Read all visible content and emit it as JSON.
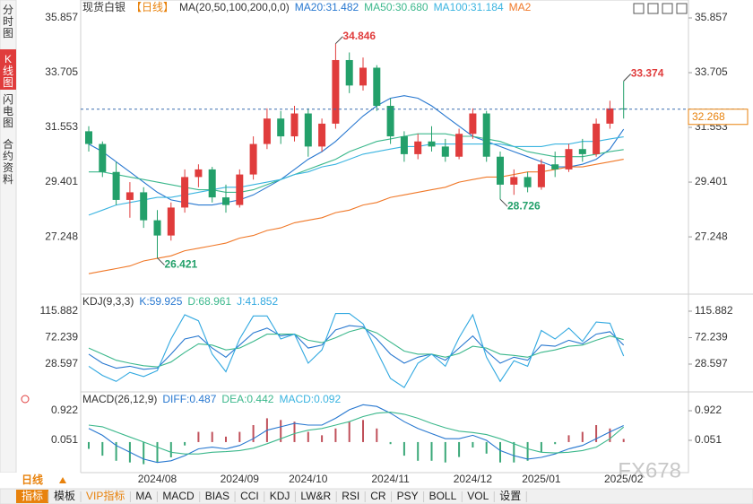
{
  "sidebar_tabs": [
    "分时图",
    "K线图",
    "闪电图",
    "合约资料"
  ],
  "period": "日线",
  "toolbar": [
    "指标",
    "模板",
    "VIP指标",
    "MA",
    "MACD",
    "BIAS",
    "CCI",
    "KDJ",
    "LW&R",
    "RSI",
    "CR",
    "PSY",
    "BOLL",
    "VOL",
    "设置"
  ],
  "watermark": "FX678",
  "chart_data": [
    {
      "type": "candlestick",
      "header": [
        {
          "text": "现货白银",
          "color": "#333333"
        },
        {
          "text": "【日线】",
          "color": "#e8820c"
        },
        {
          "text": "MA(20,50,100,200,0,0)",
          "color": "#333333"
        },
        {
          "text": "MA20:31.482",
          "color": "#2878d0"
        },
        {
          "text": "MA50:30.680",
          "color": "#3cb88c"
        },
        {
          "text": "MA100:31.184",
          "color": "#3ab4e0"
        },
        {
          "text": "MA2",
          "color": "#f07828"
        }
      ],
      "categories": [
        null,
        null,
        null,
        null,
        null,
        "2024/08",
        null,
        null,
        null,
        null,
        null,
        "2024/09",
        null,
        null,
        null,
        null,
        "2024/10",
        null,
        null,
        null,
        null,
        null,
        "2024/11",
        null,
        null,
        null,
        null,
        null,
        "2024/12",
        null,
        null,
        null,
        null,
        "2025/01",
        null,
        null,
        null,
        null,
        null,
        "2025/02"
      ],
      "open": [
        31.4,
        30.9,
        29.8,
        28.7,
        29.0,
        27.9,
        27.3,
        28.4,
        29.6,
        29.9,
        28.8,
        28.5,
        29.7,
        30.9,
        31.9,
        31.2,
        32.1,
        30.8,
        31.7,
        34.2,
        33.2,
        33.9,
        32.4,
        31.2,
        30.5,
        31.0,
        30.8,
        30.4,
        31.3,
        32.1,
        30.4,
        29.3,
        29.6,
        29.2,
        30.1,
        29.9,
        30.7,
        30.5,
        31.7,
        32.3
      ],
      "high": [
        31.6,
        31.0,
        30.2,
        29.4,
        29.2,
        28.3,
        28.6,
        29.9,
        30.1,
        30.0,
        29.3,
        29.9,
        31.2,
        32.3,
        32.2,
        32.4,
        32.3,
        31.9,
        34.846,
        34.5,
        34.3,
        34.0,
        32.7,
        31.4,
        31.3,
        31.6,
        31.1,
        31.5,
        32.3,
        32.2,
        30.6,
        29.9,
        29.8,
        30.3,
        30.6,
        30.9,
        31.1,
        31.9,
        32.6,
        33.374
      ],
      "low": [
        30.6,
        29.6,
        28.5,
        28.0,
        27.6,
        26.421,
        27.1,
        28.2,
        29.2,
        28.6,
        28.2,
        28.4,
        29.5,
        30.7,
        30.9,
        31.0,
        30.4,
        30.6,
        31.5,
        32.9,
        33.0,
        32.2,
        30.9,
        30.2,
        30.3,
        30.6,
        30.2,
        30.3,
        31.1,
        30.2,
        28.726,
        28.9,
        29.0,
        29.1,
        29.6,
        29.8,
        30.2,
        30.4,
        31.5,
        31.9
      ],
      "close": [
        30.9,
        29.8,
        28.7,
        29.0,
        27.9,
        27.3,
        28.4,
        29.6,
        29.9,
        28.8,
        28.5,
        29.7,
        30.9,
        31.9,
        31.2,
        32.1,
        30.8,
        31.7,
        34.2,
        33.2,
        33.9,
        32.4,
        31.2,
        30.5,
        31.0,
        30.8,
        30.4,
        31.3,
        32.1,
        30.4,
        29.3,
        29.6,
        29.2,
        30.1,
        29.9,
        30.7,
        30.5,
        31.7,
        32.3,
        32.268
      ],
      "up_color": "#e03c3c",
      "down_color": "#23a06a",
      "series": [
        {
          "color": "#2878d0",
          "values": [
            30.9,
            30.6,
            30.2,
            29.8,
            29.4,
            29.0,
            28.7,
            28.6,
            28.5,
            28.5,
            28.6,
            28.7,
            28.9,
            29.2,
            29.5,
            29.9,
            30.3,
            30.6,
            31.0,
            31.5,
            32.0,
            32.4,
            32.7,
            32.8,
            32.7,
            32.4,
            32.0,
            31.6,
            31.2,
            31.0,
            30.8,
            30.6,
            30.4,
            30.2,
            30.0,
            30.0,
            30.1,
            30.3,
            30.7,
            31.48
          ]
        },
        {
          "color": "#3cb88c",
          "values": [
            29.8,
            29.8,
            29.7,
            29.6,
            29.5,
            29.4,
            29.3,
            29.2,
            29.1,
            29.1,
            29.0,
            29.0,
            29.1,
            29.3,
            29.5,
            29.7,
            29.9,
            30.1,
            30.3,
            30.6,
            30.8,
            31.0,
            31.1,
            31.2,
            31.3,
            31.3,
            31.3,
            31.2,
            31.2,
            31.1,
            31.0,
            30.8,
            30.6,
            30.5,
            30.4,
            30.4,
            30.4,
            30.5,
            30.6,
            30.68
          ]
        },
        {
          "color": "#3ab4e0",
          "values": [
            28.1,
            28.3,
            28.5,
            28.6,
            28.7,
            28.8,
            28.8,
            28.9,
            29.0,
            29.1,
            29.2,
            29.2,
            29.3,
            29.4,
            29.5,
            29.7,
            29.8,
            30.0,
            30.1,
            30.3,
            30.5,
            30.6,
            30.7,
            30.8,
            30.8,
            30.9,
            30.9,
            30.9,
            30.9,
            30.9,
            30.9,
            30.8,
            30.8,
            30.8,
            30.9,
            30.9,
            31.0,
            31.0,
            31.1,
            31.18
          ]
        },
        {
          "color": "#f07828",
          "values": [
            25.8,
            25.9,
            26.0,
            26.1,
            26.3,
            26.4,
            26.5,
            26.7,
            26.8,
            26.9,
            27.0,
            27.2,
            27.3,
            27.5,
            27.6,
            27.8,
            27.9,
            28.0,
            28.2,
            28.3,
            28.5,
            28.6,
            28.8,
            28.9,
            29.0,
            29.1,
            29.2,
            29.4,
            29.5,
            29.6,
            29.6,
            29.7,
            29.8,
            29.8,
            29.9,
            30.0,
            30.0,
            30.1,
            30.2,
            30.3
          ]
        }
      ],
      "annotations": [
        {
          "value": 34.846,
          "color": "#e03c3c"
        },
        {
          "value": 33.374,
          "color": "#e03c3c"
        },
        {
          "value": 28.726,
          "color": "#23a06a"
        },
        {
          "value": 26.421,
          "color": "#23a06a"
        }
      ],
      "last_price": 32.268,
      "ylim": [
        25.1,
        36.21
      ],
      "yticks": [
        27.248,
        29.401,
        31.553,
        33.705,
        35.857
      ]
    },
    {
      "type": "line",
      "header": [
        {
          "text": "KDJ(9,3,3)",
          "color": "#333333"
        },
        {
          "text": "K:59.925",
          "color": "#2878d0"
        },
        {
          "text": "D:68.961",
          "color": "#3cb88c"
        },
        {
          "text": "J:41.852",
          "color": "#30a8e0"
        }
      ],
      "series": [
        {
          "color": "#2878d0",
          "values": [
            45,
            30,
            22,
            25,
            20,
            22,
            45,
            70,
            75,
            55,
            40,
            60,
            80,
            88,
            75,
            78,
            55,
            60,
            85,
            92,
            90,
            70,
            45,
            30,
            40,
            45,
            35,
            55,
            75,
            50,
            30,
            40,
            35,
            60,
            58,
            68,
            62,
            78,
            82,
            59.925
          ]
        },
        {
          "color": "#3cb88c",
          "values": [
            55,
            45,
            35,
            30,
            26,
            24,
            32,
            48,
            62,
            60,
            52,
            55,
            66,
            78,
            78,
            78,
            68,
            64,
            72,
            82,
            88,
            80,
            65,
            50,
            45,
            45,
            40,
            46,
            58,
            55,
            45,
            43,
            40,
            48,
            52,
            58,
            60,
            68,
            75,
            68.961
          ]
        },
        {
          "color": "#30a8e0",
          "values": [
            25,
            10,
            0,
            15,
            8,
            18,
            70,
            110,
            100,
            45,
            16,
            70,
            108,
            108,
            70,
            78,
            30,
            52,
            112,
            112,
            95,
            50,
            5,
            -10,
            30,
            45,
            25,
            72,
            110,
            40,
            0,
            34,
            25,
            84,
            70,
            88,
            66,
            98,
            96,
            41.852
          ]
        }
      ],
      "ylim": [
        -14.3,
        133.6
      ],
      "yticks": [
        28.597,
        72.239,
        115.882
      ]
    },
    {
      "type": "macd",
      "header": [
        {
          "text": "MACD(26,12,9)",
          "color": "#333333"
        },
        {
          "text": "DIFF:0.487",
          "color": "#2878d0"
        },
        {
          "text": "DEA:0.442",
          "color": "#3cb88c"
        },
        {
          "text": "MACD:0.092",
          "color": "#3ab4e0"
        }
      ],
      "series": [
        {
          "color": "#2878d0",
          "values": [
            0.4,
            0.2,
            -0.1,
            -0.3,
            -0.5,
            -0.6,
            -0.55,
            -0.4,
            -0.2,
            -0.15,
            -0.2,
            -0.1,
            0.1,
            0.35,
            0.45,
            0.55,
            0.5,
            0.5,
            0.7,
            0.95,
            1.1,
            1.05,
            0.85,
            0.6,
            0.4,
            0.25,
            0.1,
            0.1,
            0.2,
            0.05,
            -0.25,
            -0.4,
            -0.5,
            -0.45,
            -0.35,
            -0.2,
            -0.1,
            0.1,
            0.3,
            0.487
          ]
        },
        {
          "color": "#3cb88c",
          "values": [
            0.5,
            0.45,
            0.3,
            0.15,
            0.0,
            -0.15,
            -0.3,
            -0.35,
            -0.35,
            -0.3,
            -0.28,
            -0.25,
            -0.18,
            -0.05,
            0.1,
            0.25,
            0.35,
            0.4,
            0.5,
            0.6,
            0.75,
            0.85,
            0.88,
            0.82,
            0.7,
            0.55,
            0.42,
            0.32,
            0.28,
            0.22,
            0.1,
            -0.05,
            -0.2,
            -0.3,
            -0.32,
            -0.3,
            -0.25,
            -0.15,
            0.1,
            0.442
          ]
        }
      ],
      "histogram": [
        -0.2,
        -0.4,
        -0.55,
        -0.6,
        -0.65,
        -0.6,
        -0.45,
        -0.1,
        0.3,
        0.3,
        0.16,
        0.3,
        0.5,
        0.7,
        0.65,
        0.6,
        0.3,
        0.2,
        0.4,
        0.6,
        0.65,
        0.4,
        -0.06,
        -0.4,
        -0.55,
        -0.55,
        -0.6,
        -0.44,
        -0.16,
        -0.34,
        -0.6,
        -0.6,
        -0.55,
        -0.3,
        -0.06,
        0.2,
        0.3,
        0.5,
        0.4,
        0.092
      ],
      "up_color": "#c0505a",
      "down_color": "#3aa878",
      "ylim": [
        -0.714,
        1.397
      ],
      "yticks": [
        0.051,
        0.922
      ]
    }
  ]
}
